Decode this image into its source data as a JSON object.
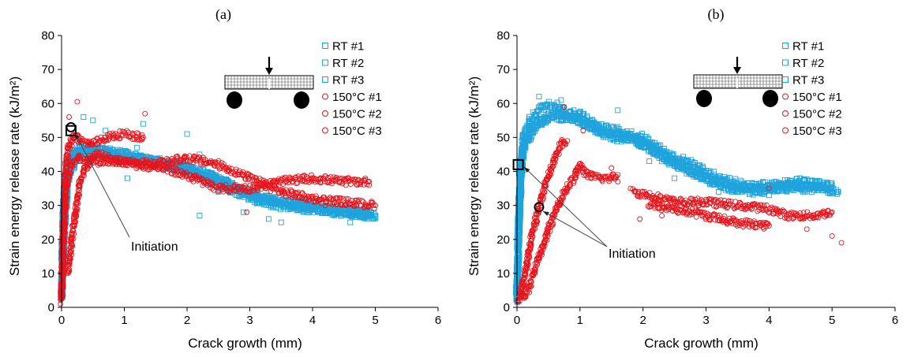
{
  "colors": {
    "rt": "#1fa3dc",
    "hot": "#e8141b",
    "axis": "#000000",
    "beam": "#000000"
  },
  "chart_data": [
    {
      "type": "scatter",
      "title": "(a)",
      "xlabel": "Crack growth (mm)",
      "ylabel": "Strain energy release rate (kJ/m²)",
      "xlim": [
        0,
        6
      ],
      "ylim": [
        0,
        80
      ],
      "xticks": [
        "0",
        "1",
        "2",
        "3",
        "4",
        "5",
        "6"
      ],
      "yticks": [
        "0",
        "10",
        "20",
        "30",
        "40",
        "50",
        "60",
        "70",
        "80"
      ],
      "grid": false,
      "legend_position": "top-right",
      "annotation": {
        "text": "Initiation",
        "arrow_to": [
          [
            0.15,
            52
          ]
        ]
      },
      "initiation_markers": [
        {
          "shape": "square",
          "x": 0.15,
          "y": 52
        },
        {
          "shape": "circle",
          "x": 0.15,
          "y": 53
        }
      ],
      "series": [
        {
          "name": "RT #1",
          "marker": "square",
          "color": "rt",
          "trend": [
            [
              0,
              5
            ],
            [
              0.03,
              30
            ],
            [
              0.08,
              42
            ],
            [
              0.2,
              46
            ],
            [
              0.4,
              47
            ],
            [
              0.6,
              45
            ],
            [
              1.0,
              44
            ],
            [
              1.5,
              43
            ],
            [
              2.0,
              41
            ],
            [
              2.5,
              38
            ],
            [
              3.0,
              33
            ],
            [
              3.5,
              31
            ],
            [
              4.0,
              29
            ],
            [
              4.5,
              28
            ],
            [
              5.0,
              27
            ]
          ],
          "scatter_points": [
            [
              0.35,
              56
            ],
            [
              0.7,
              52
            ],
            [
              1.3,
              54
            ],
            [
              2.0,
              51
            ],
            [
              2.2,
              27
            ],
            [
              2.8,
              33
            ],
            [
              3.5,
              25
            ],
            [
              4.6,
              25
            ],
            [
              1.05,
              38
            ]
          ]
        },
        {
          "name": "RT #2",
          "marker": "square",
          "color": "rt",
          "trend": [
            [
              0,
              3
            ],
            [
              0.05,
              25
            ],
            [
              0.1,
              38
            ],
            [
              0.25,
              44
            ],
            [
              0.5,
              46
            ],
            [
              0.8,
              46
            ],
            [
              1.2,
              44
            ],
            [
              1.7,
              42
            ],
            [
              2.2,
              40
            ],
            [
              2.7,
              36
            ],
            [
              3.2,
              32
            ],
            [
              3.7,
              31
            ],
            [
              4.2,
              29
            ],
            [
              4.7,
              28
            ],
            [
              5.0,
              27
            ]
          ],
          "scatter_points": [
            [
              0.5,
              55
            ],
            [
              1.2,
              47
            ],
            [
              2.2,
              45
            ],
            [
              2.9,
              28
            ],
            [
              3.3,
              26
            ]
          ]
        },
        {
          "name": "RT #3",
          "marker": "square",
          "color": "rt",
          "trend": [
            [
              0,
              4
            ],
            [
              0.04,
              28
            ],
            [
              0.09,
              40
            ],
            [
              0.2,
              45
            ],
            [
              0.45,
              47
            ],
            [
              0.9,
              45
            ],
            [
              1.4,
              43
            ],
            [
              1.9,
              41
            ],
            [
              2.4,
              37
            ],
            [
              2.9,
              33
            ],
            [
              3.4,
              30
            ],
            [
              3.9,
              29
            ],
            [
              4.4,
              28
            ],
            [
              4.9,
              27
            ]
          ],
          "scatter_points": [
            [
              0.7,
              50
            ],
            [
              1.6,
              41
            ],
            [
              2.5,
              34
            ],
            [
              3.9,
              31
            ]
          ]
        },
        {
          "name": "150°C #1",
          "marker": "circle",
          "color": "hot",
          "trend": [
            [
              0,
              2
            ],
            [
              0.02,
              15
            ],
            [
              0.05,
              35
            ],
            [
              0.1,
              46
            ],
            [
              0.2,
              51
            ],
            [
              0.3,
              49
            ],
            [
              0.5,
              48
            ],
            [
              0.7,
              50
            ],
            [
              1.0,
              51
            ],
            [
              1.3,
              50
            ]
          ],
          "scatter_points": [
            [
              0.25,
              60.5
            ],
            [
              1.33,
              57
            ],
            [
              0.12,
              56
            ]
          ]
        },
        {
          "name": "150°C #2",
          "marker": "circle",
          "color": "hot",
          "trend": [
            [
              0.1,
              10
            ],
            [
              0.2,
              25
            ],
            [
              0.3,
              38
            ],
            [
              0.5,
              45
            ],
            [
              0.8,
              44
            ],
            [
              1.2,
              42
            ],
            [
              1.6,
              41
            ],
            [
              2.0,
              39
            ],
            [
              2.5,
              35
            ],
            [
              3.0,
              35
            ],
            [
              3.5,
              37
            ],
            [
              4.0,
              38
            ],
            [
              4.5,
              37
            ],
            [
              4.9,
              37
            ]
          ],
          "scatter_points": [
            [
              1.9,
              43
            ],
            [
              2.1,
              37
            ],
            [
              4.2,
              30
            ]
          ]
        },
        {
          "name": "150°C #3",
          "marker": "circle",
          "color": "hot",
          "trend": [
            [
              0,
              3
            ],
            [
              0.03,
              20
            ],
            [
              0.07,
              35
            ],
            [
              0.15,
              42
            ],
            [
              0.3,
              44
            ],
            [
              0.6,
              43
            ],
            [
              1.0,
              43
            ],
            [
              1.5,
              42
            ],
            [
              2.0,
              44
            ],
            [
              2.5,
              42
            ],
            [
              3.0,
              38
            ],
            [
              3.5,
              34
            ],
            [
              4.0,
              32
            ],
            [
              4.5,
              31
            ],
            [
              5.0,
              30
            ]
          ],
          "scatter_points": [
            [
              2.95,
              28
            ],
            [
              0.45,
              48
            ]
          ]
        }
      ]
    },
    {
      "type": "scatter",
      "title": "(b)",
      "xlabel": "Crack growth (mm)",
      "ylabel": "Strain energy release rate (kJ/m²)",
      "xlim": [
        0,
        6
      ],
      "ylim": [
        0,
        80
      ],
      "xticks": [
        "0",
        "1",
        "2",
        "3",
        "4",
        "5",
        "6"
      ],
      "yticks": [
        "0",
        "10",
        "20",
        "30",
        "40",
        "50",
        "60",
        "70",
        "80"
      ],
      "grid": false,
      "legend_position": "top-right",
      "annotation": {
        "text": "Initiation",
        "arrow_to": [
          [
            0.05,
            42
          ],
          [
            0.35,
            29
          ]
        ]
      },
      "initiation_markers": [
        {
          "shape": "square",
          "x": 0.02,
          "y": 42
        },
        {
          "shape": "circle",
          "x": 0.35,
          "y": 29.5
        }
      ],
      "series": [
        {
          "name": "RT #1",
          "marker": "square",
          "color": "rt",
          "trend": [
            [
              0,
              2
            ],
            [
              0.02,
              20
            ],
            [
              0.05,
              40
            ],
            [
              0.1,
              50
            ],
            [
              0.2,
              55
            ],
            [
              0.4,
              59
            ],
            [
              0.6,
              60
            ],
            [
              0.8,
              57
            ],
            [
              1.0,
              57
            ],
            [
              1.3,
              53
            ],
            [
              1.6,
              52
            ],
            [
              2.0,
              50
            ],
            [
              2.4,
              45
            ],
            [
              2.8,
              42
            ],
            [
              3.2,
              38
            ],
            [
              3.6,
              36
            ],
            [
              4.0,
              35
            ],
            [
              4.5,
              35
            ],
            [
              5.0,
              35
            ]
          ],
          "scatter_points": [
            [
              0.35,
              62
            ],
            [
              0.9,
              58
            ],
            [
              1.6,
              58
            ],
            [
              1.9,
              34
            ],
            [
              2.1,
              43
            ],
            [
              3.2,
              34
            ]
          ]
        },
        {
          "name": "RT #2",
          "marker": "square",
          "color": "rt",
          "trend": [
            [
              0,
              3
            ],
            [
              0.03,
              25
            ],
            [
              0.08,
              45
            ],
            [
              0.2,
              52
            ],
            [
              0.5,
              56
            ],
            [
              0.9,
              56
            ],
            [
              1.2,
              53
            ],
            [
              1.5,
              50
            ],
            [
              1.9,
              49
            ],
            [
              2.3,
              44
            ],
            [
              2.7,
              41
            ],
            [
              3.1,
              37
            ],
            [
              3.5,
              35
            ],
            [
              4.0,
              36
            ],
            [
              4.5,
              37
            ],
            [
              5.0,
              36
            ]
          ],
          "scatter_points": [
            [
              1.2,
              55
            ],
            [
              2.5,
              38
            ],
            [
              4.0,
              33
            ]
          ]
        },
        {
          "name": "RT #3",
          "marker": "square",
          "color": "rt",
          "trend": [
            [
              0,
              4
            ],
            [
              0.04,
              30
            ],
            [
              0.1,
              47
            ],
            [
              0.3,
              54
            ],
            [
              0.6,
              57
            ],
            [
              1.0,
              55
            ],
            [
              1.4,
              51
            ],
            [
              1.8,
              50
            ],
            [
              2.2,
              46
            ],
            [
              2.6,
              41
            ],
            [
              3.0,
              38
            ],
            [
              3.4,
              35
            ],
            [
              3.8,
              34
            ],
            [
              4.3,
              36
            ],
            [
              4.8,
              35
            ],
            [
              5.1,
              34
            ]
          ],
          "scatter_points": [
            [
              0.7,
              61
            ],
            [
              2.8,
              42
            ]
          ]
        },
        {
          "name": "150°C #1",
          "marker": "circle",
          "color": "hot",
          "trend": [
            [
              0.05,
              3
            ],
            [
              0.15,
              12
            ],
            [
              0.25,
              22
            ],
            [
              0.4,
              33
            ],
            [
              0.55,
              42
            ],
            [
              0.7,
              48
            ],
            [
              0.8,
              49
            ]
          ],
          "scatter_points": [
            [
              0.75,
              59
            ],
            [
              1.05,
              52
            ]
          ]
        },
        {
          "name": "150°C #2",
          "marker": "circle",
          "color": "hot",
          "trend": [
            [
              0,
              2
            ],
            [
              0.1,
              3
            ],
            [
              0.2,
              6
            ],
            [
              0.3,
              12
            ],
            [
              0.45,
              20
            ],
            [
              0.6,
              28
            ],
            [
              0.75,
              34
            ],
            [
              0.9,
              38
            ],
            [
              1.0,
              42
            ],
            [
              1.1,
              39
            ],
            [
              1.3,
              38
            ],
            [
              1.5,
              38
            ],
            [
              1.6,
              39
            ]
          ],
          "scatter_points": [
            [
              1.5,
              41
            ],
            [
              1.6,
              37
            ]
          ]
        },
        {
          "name": "150°C #3",
          "marker": "circle",
          "color": "hot",
          "trend": [
            [
              1.85,
              34
            ],
            [
              2.1,
              33
            ],
            [
              2.5,
              31
            ],
            [
              3.0,
              31
            ],
            [
              3.5,
              30
            ],
            [
              4.0,
              29
            ],
            [
              4.3,
              27
            ],
            [
              4.7,
              27
            ],
            [
              5.0,
              28
            ]
          ],
          "scatter_points": [
            [
              1.8,
              35
            ],
            [
              1.95,
              26
            ],
            [
              2.3,
              27
            ],
            [
              4.0,
              35
            ],
            [
              4.6,
              23
            ],
            [
              5.0,
              21
            ],
            [
              5.15,
              19
            ]
          ]
        },
        {
          "name": "",
          "marker": "circle",
          "color": "hot",
          "legend": false,
          "trend": [
            [
              2.1,
              30
            ],
            [
              2.5,
              29
            ],
            [
              3.0,
              27
            ],
            [
              3.5,
              25
            ],
            [
              4.0,
              24
            ]
          ],
          "scatter_points": []
        }
      ]
    }
  ]
}
